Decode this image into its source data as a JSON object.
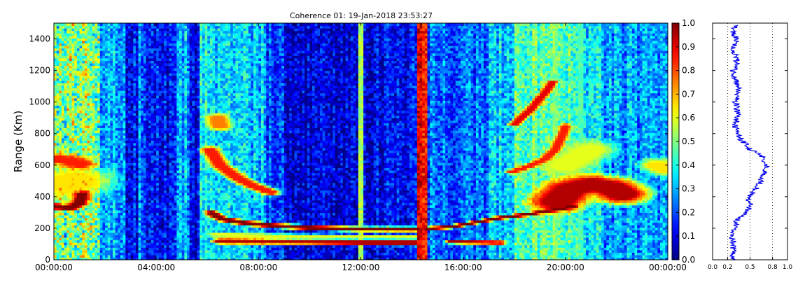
{
  "chart_data": [
    {
      "type": "heatmap",
      "title": "Coherence 01: 19-Jan-2018 23:53:27",
      "xlabel": "",
      "ylabel": "Range (Km)",
      "x_ticks": [
        "00:00:00",
        "04:00:00",
        "08:00:00",
        "12:00:00",
        "16:00:00",
        "20:00:00",
        "00:00:00"
      ],
      "x_range_hours": [
        0,
        24
      ],
      "y_ticks": [
        0,
        200,
        400,
        600,
        800,
        1000,
        1200,
        1400
      ],
      "ylim": [
        0,
        1500
      ],
      "colormap": "jet",
      "colorbar": {
        "ticks": [
          "0.0",
          "0.1",
          "0.2",
          "0.3",
          "0.4",
          "0.5",
          "0.6",
          "0.7",
          "0.8",
          "0.9",
          "1.0"
        ],
        "range": [
          0,
          1
        ]
      },
      "background_by_hour": [
        {
          "h0": 0,
          "h1": 1.8,
          "v": 0.5
        },
        {
          "h0": 1.8,
          "h1": 2.8,
          "v": 0.3
        },
        {
          "h0": 2.8,
          "h1": 3.3,
          "v": 0.13
        },
        {
          "h0": 3.3,
          "h1": 3.6,
          "v": 0.25
        },
        {
          "h0": 3.6,
          "h1": 4.8,
          "v": 0.12
        },
        {
          "h0": 4.8,
          "h1": 5.3,
          "v": 0.3
        },
        {
          "h0": 5.3,
          "h1": 5.7,
          "v": 0.1
        },
        {
          "h0": 5.7,
          "h1": 6.3,
          "v": 0.38
        },
        {
          "h0": 6.3,
          "h1": 8.3,
          "v": 0.33
        },
        {
          "h0": 8.3,
          "h1": 9.0,
          "v": 0.18
        },
        {
          "h0": 9.0,
          "h1": 12.0,
          "v": 0.08
        },
        {
          "h0": 12.0,
          "h1": 14.5,
          "v": 0.12
        },
        {
          "h0": 14.5,
          "h1": 17.0,
          "v": 0.22
        },
        {
          "h0": 17.0,
          "h1": 18.0,
          "v": 0.32
        },
        {
          "h0": 18.0,
          "h1": 20.5,
          "v": 0.45
        },
        {
          "h0": 20.5,
          "h1": 21.5,
          "v": 0.35
        },
        {
          "h0": 21.5,
          "h1": 24.0,
          "v": 0.28
        }
      ],
      "features": [
        {
          "points": [
            [
              6.5,
              120
            ],
            [
              8,
              118
            ],
            [
              10,
              116
            ],
            [
              12,
              112
            ],
            [
              14.1,
              110
            ]
          ],
          "v": 0.95,
          "thickness_km": 25
        },
        {
          "points": [
            [
              6.3,
              160
            ],
            [
              8,
              155
            ],
            [
              10,
              150
            ],
            [
              12,
              148
            ],
            [
              14.1,
              146
            ]
          ],
          "v": 0.6,
          "thickness_km": 20
        },
        {
          "points": [
            [
              6.15,
              300
            ],
            [
              6.6,
              260
            ],
            [
              7.5,
              235
            ],
            [
              8.5,
              220
            ],
            [
              10,
              205
            ],
            [
              12,
              196
            ],
            [
              14.2,
              195
            ]
          ],
          "v": 1.0,
          "thickness_km": 22
        },
        {
          "points": [
            [
              6.1,
              700
            ],
            [
              6.5,
              600
            ],
            [
              7.2,
              520
            ],
            [
              7.8,
              470
            ],
            [
              8.5,
              430
            ]
          ],
          "v": 0.85,
          "thickness_km": 30
        },
        {
          "points": [
            [
              6.4,
              900
            ],
            [
              6.5,
              850
            ]
          ],
          "v": 0.75,
          "thickness_km": 40
        },
        {
          "points": [
            [
              14.6,
              200
            ],
            [
              15.5,
              210
            ],
            [
              16.5,
              240
            ],
            [
              17.5,
              270
            ],
            [
              18.5,
              290
            ],
            [
              19.6,
              320
            ],
            [
              20.3,
              340
            ]
          ],
          "v": 1.0,
          "thickness_km": 16
        },
        {
          "points": [
            [
              15.5,
              115
            ],
            [
              16.5,
              112
            ],
            [
              17.5,
              110
            ]
          ],
          "v": 0.95,
          "thickness_km": 16
        },
        {
          "points": [
            [
              17.9,
              560
            ],
            [
              18.5,
              590
            ],
            [
              19.2,
              640
            ],
            [
              19.6,
              700
            ],
            [
              19.9,
              800
            ],
            [
              20.0,
              850
            ]
          ],
          "v": 0.85,
          "thickness_km": 20
        },
        {
          "points": [
            [
              18.0,
              860
            ],
            [
              18.6,
              950
            ],
            [
              19.3,
              1080
            ],
            [
              19.5,
              1130
            ]
          ],
          "v": 0.9,
          "thickness_km": 18
        },
        {
          "points": [
            [
              0.1,
              640
            ],
            [
              0.6,
              630
            ],
            [
              1.0,
              610
            ]
          ],
          "v": 0.85,
          "thickness_km": 50
        },
        {
          "points": [
            [
              0.05,
              340
            ],
            [
              0.6,
              330
            ],
            [
              1.0,
              360
            ],
            [
              1.1,
              420
            ]
          ],
          "v": 1.0,
          "thickness_km": 26
        },
        {
          "points": [
            [
              19.7,
              370
            ],
            [
              20.2,
              450
            ],
            [
              21.0,
              480
            ],
            [
              21.8,
              460
            ],
            [
              22.2,
              420
            ]
          ],
          "v": 0.95,
          "thickness_km": 90
        },
        {
          "points": [
            [
              20.0,
              600
            ],
            [
              20.5,
              650
            ],
            [
              21.0,
              700
            ]
          ],
          "v": 0.6,
          "thickness_km": 80
        },
        {
          "points": [
            [
              0.5,
              480
            ],
            [
              0.8,
              500
            ]
          ],
          "v": 0.65,
          "thickness_km": 120
        },
        {
          "points": [
            [
              23.6,
              600
            ],
            [
              23.9,
              580
            ]
          ],
          "v": 0.65,
          "thickness_km": 60
        }
      ],
      "vertical_lines": [
        {
          "h": 12.0,
          "v": 0.6
        },
        {
          "h": 14.3,
          "v": 1.0
        },
        {
          "h": 14.5,
          "v": 0.95
        },
        {
          "h": 19.6,
          "v": 0.55
        },
        {
          "h": 20.6,
          "v": 0.5
        }
      ]
    },
    {
      "type": "line",
      "x_ticks": [
        "0.0",
        "0.2",
        "0.5",
        "0.8",
        "1.0"
      ],
      "xlim": [
        0,
        1
      ],
      "ylim": [
        0,
        1500
      ],
      "grid_x": [
        0.2,
        0.5,
        0.8
      ],
      "series": [
        {
          "y": [
            0,
            50,
            100,
            150,
            200,
            250,
            300,
            350,
            400,
            450,
            500,
            550,
            600,
            650,
            700,
            750,
            800,
            850,
            900,
            950,
            1000,
            1050,
            1100,
            1150,
            1200,
            1250,
            1300,
            1350,
            1400,
            1450,
            1490
          ],
          "x": [
            0.28,
            0.27,
            0.29,
            0.26,
            0.28,
            0.32,
            0.45,
            0.5,
            0.48,
            0.58,
            0.64,
            0.7,
            0.72,
            0.68,
            0.5,
            0.4,
            0.32,
            0.3,
            0.33,
            0.32,
            0.31,
            0.33,
            0.34,
            0.3,
            0.28,
            0.33,
            0.3,
            0.27,
            0.32,
            0.26,
            0.3
          ]
        }
      ]
    }
  ]
}
